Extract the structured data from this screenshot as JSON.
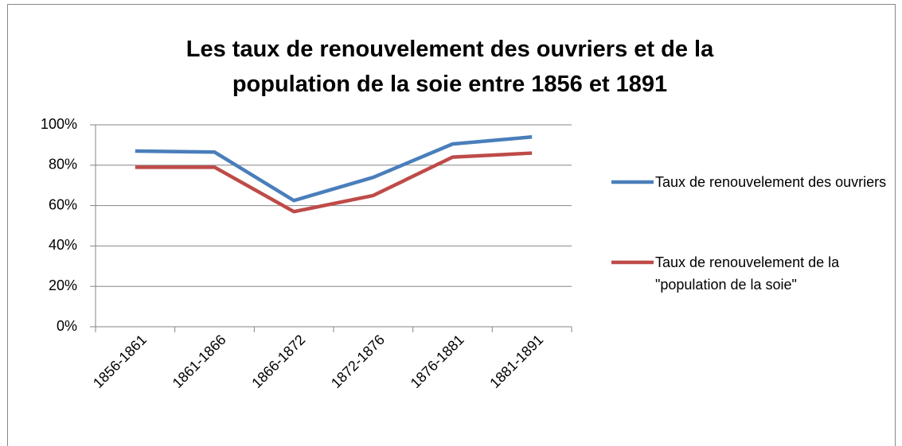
{
  "chart_data": {
    "type": "line",
    "title": "Les taux de renouvelement des ouvriers et de la population de la soie entre 1856 et 1891",
    "categories": [
      "1856-1861",
      "1861-1866",
      "1866-1872",
      "1872-1876",
      "1876-1881",
      "1881-1891"
    ],
    "series": [
      {
        "name": "Taux de renouvelement des ouvriers",
        "color": "#4a7ebb",
        "values": [
          87,
          86.5,
          62.5,
          74,
          90.5,
          94
        ]
      },
      {
        "name": "Taux de renouvelement de la \"population de la soie\"",
        "color": "#be4b48",
        "values": [
          79,
          79,
          57,
          65,
          84,
          86
        ]
      }
    ],
    "ylim": [
      0,
      100
    ],
    "yticks": [
      {
        "value": 0,
        "label": "0%"
      },
      {
        "value": 20,
        "label": "20%"
      },
      {
        "value": 40,
        "label": "40%"
      },
      {
        "value": 60,
        "label": "60%"
      },
      {
        "value": 80,
        "label": "80%"
      },
      {
        "value": 100,
        "label": "100%"
      }
    ],
    "grid": true,
    "legend": "right"
  }
}
